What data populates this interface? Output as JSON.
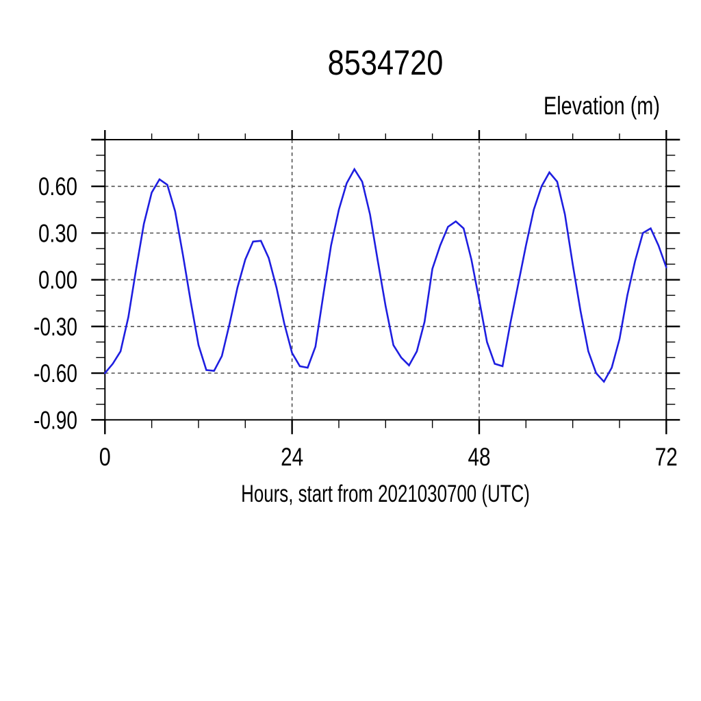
{
  "page": {
    "background": "#ffffff"
  },
  "chart_data": {
    "type": "line",
    "title": "8534720",
    "right_axis_label": "Elevation (m)",
    "xlabel": "Hours, start from 2021030700 (UTC)",
    "xlim": [
      0,
      72
    ],
    "ylim": [
      -0.9,
      0.9
    ],
    "x_major_ticks": [
      0,
      24,
      48,
      72
    ],
    "x_tick_labels": [
      "0",
      "24",
      "48",
      "72"
    ],
    "x_minor_step": 6,
    "y_major_ticks": [
      -0.9,
      -0.6,
      -0.3,
      0,
      0.3,
      0.6,
      0.9
    ],
    "y_labeled_ticks": [
      {
        "value": -0.9,
        "label": "-0.90"
      },
      {
        "value": -0.6,
        "label": "-0.60"
      },
      {
        "value": -0.3,
        "label": "-0.30"
      },
      {
        "value": 0.0,
        "label": "0.00"
      },
      {
        "value": 0.3,
        "label": "0.30"
      },
      {
        "value": 0.6,
        "label": "0.60"
      }
    ],
    "y_minor_step": 0.1,
    "x_gridlines": [
      24,
      48
    ],
    "y_gridlines": [
      -0.6,
      -0.3,
      0,
      0.3,
      0.6
    ],
    "grid_style": "dashed",
    "legend": "none",
    "line_color": "#1e1ee0",
    "grid_color": "#5a5a5a",
    "axis_color": "#000000",
    "series": [
      {
        "name": "elevation",
        "x": [
          0,
          1,
          2,
          3,
          4,
          5,
          6,
          7,
          8,
          9,
          10,
          11,
          12,
          13,
          14,
          15,
          16,
          17,
          18,
          19,
          20,
          21,
          22,
          23,
          24,
          25,
          26,
          27,
          28,
          29,
          30,
          31,
          32,
          33,
          34,
          35,
          36,
          37,
          38,
          39,
          40,
          41,
          42,
          43,
          44,
          45,
          46,
          47,
          48,
          49,
          50,
          51,
          52,
          53,
          54,
          55,
          56,
          57,
          58,
          59,
          60,
          61,
          62,
          63,
          64,
          65,
          66,
          67,
          68,
          69,
          70,
          71,
          72
        ],
        "y": [
          -0.6,
          -0.54,
          -0.46,
          -0.24,
          0.07,
          0.36,
          0.56,
          0.645,
          0.61,
          0.44,
          0.16,
          -0.14,
          -0.42,
          -0.58,
          -0.585,
          -0.49,
          -0.28,
          -0.05,
          0.13,
          0.245,
          0.25,
          0.14,
          -0.05,
          -0.28,
          -0.47,
          -0.555,
          -0.565,
          -0.43,
          -0.1,
          0.22,
          0.45,
          0.62,
          0.71,
          0.63,
          0.42,
          0.12,
          -0.17,
          -0.42,
          -0.5,
          -0.55,
          -0.46,
          -0.27,
          0.07,
          0.22,
          0.34,
          0.375,
          0.33,
          0.13,
          -0.13,
          -0.4,
          -0.54,
          -0.555,
          -0.28,
          -0.03,
          0.22,
          0.45,
          0.6,
          0.69,
          0.63,
          0.42,
          0.1,
          -0.2,
          -0.46,
          -0.6,
          -0.655,
          -0.565,
          -0.38,
          -0.1,
          0.12,
          0.3,
          0.33,
          0.22,
          0.08
        ]
      }
    ]
  }
}
